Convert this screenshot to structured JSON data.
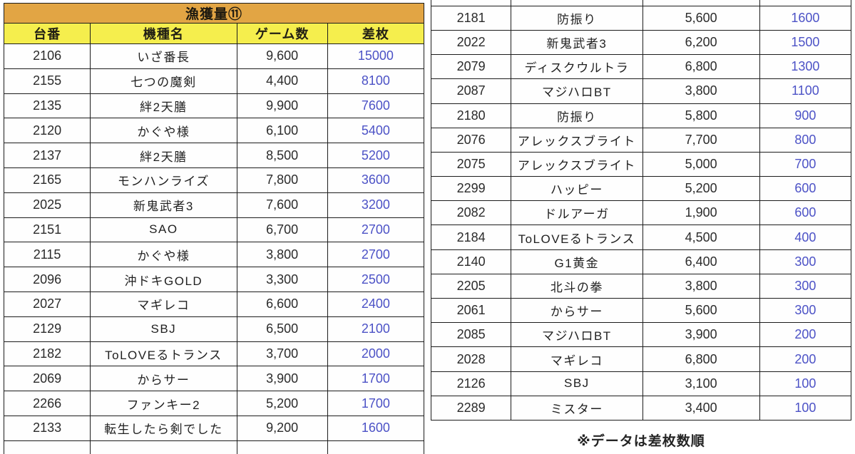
{
  "title": "漁獲量⑪",
  "note": "※データは差枚数順",
  "columns": [
    "台番",
    "機種名",
    "ゲーム数",
    "差枚"
  ],
  "colors": {
    "title_bg": "#E2A544",
    "header_bg": "#F5EE4D",
    "border": "#1c1c1c",
    "diff_text": "#4C52C6"
  },
  "left_table": {
    "rows": [
      [
        "2106",
        "いざ番長",
        "9,600",
        "15000"
      ],
      [
        "2155",
        "七つの魔剣",
        "4,400",
        "8100"
      ],
      [
        "2135",
        "絆2天膳",
        "9,900",
        "7600"
      ],
      [
        "2120",
        "かぐや様",
        "6,100",
        "5400"
      ],
      [
        "2137",
        "絆2天膳",
        "8,500",
        "5200"
      ],
      [
        "2165",
        "モンハンライズ",
        "7,800",
        "3600"
      ],
      [
        "2025",
        "新鬼武者3",
        "7,600",
        "3200"
      ],
      [
        "2151",
        "SAO",
        "6,700",
        "2700"
      ],
      [
        "2115",
        "かぐや様",
        "3,800",
        "2700"
      ],
      [
        "2096",
        "沖ドキGOLD",
        "3,300",
        "2500"
      ],
      [
        "2027",
        "マギレコ",
        "6,600",
        "2400"
      ],
      [
        "2129",
        "SBJ",
        "6,500",
        "2100"
      ],
      [
        "2182",
        "ToLOVEるトランス",
        "3,700",
        "2000"
      ],
      [
        "2069",
        "からサー",
        "3,900",
        "1700"
      ],
      [
        "2266",
        "ファンキー2",
        "5,200",
        "1700"
      ],
      [
        "2133",
        "転生したら剣でした",
        "9,200",
        "1600"
      ]
    ]
  },
  "right_table": {
    "rows": [
      [
        "2181",
        "防振り",
        "5,600",
        "1600"
      ],
      [
        "2022",
        "新鬼武者3",
        "6,200",
        "1500"
      ],
      [
        "2079",
        "ディスクウルトラ",
        "6,800",
        "1300"
      ],
      [
        "2087",
        "マジハロBT",
        "3,800",
        "1100"
      ],
      [
        "2180",
        "防振り",
        "5,800",
        "900"
      ],
      [
        "2076",
        "アレックスブライト",
        "7,700",
        "800"
      ],
      [
        "2075",
        "アレックスブライト",
        "5,000",
        "700"
      ],
      [
        "2299",
        "ハッピー",
        "5,200",
        "600"
      ],
      [
        "2082",
        "ドルアーガ",
        "1,900",
        "600"
      ],
      [
        "2184",
        "ToLOVEるトランス",
        "4,500",
        "400"
      ],
      [
        "2140",
        "G1黄金",
        "6,400",
        "300"
      ],
      [
        "2205",
        "北斗の拳",
        "3,800",
        "300"
      ],
      [
        "2061",
        "からサー",
        "5,600",
        "300"
      ],
      [
        "2085",
        "マジハロBT",
        "3,900",
        "200"
      ],
      [
        "2028",
        "マギレコ",
        "6,800",
        "200"
      ],
      [
        "2126",
        "SBJ",
        "3,100",
        "100"
      ],
      [
        "2289",
        "ミスター",
        "3,400",
        "100"
      ]
    ]
  }
}
